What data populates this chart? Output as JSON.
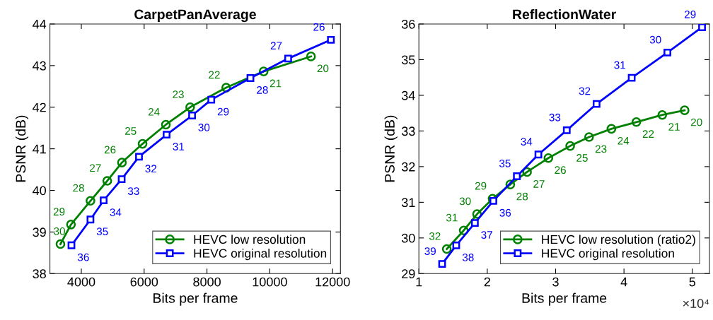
{
  "chart_data": [
    {
      "type": "line",
      "title": "CarpetPanAverage",
      "xlabel": "Bits per frame",
      "ylabel": "PSNR (dB)",
      "xlim": [
        3000,
        12250
      ],
      "xticks": [
        4000,
        6000,
        8000,
        10000,
        12000
      ],
      "ylim": [
        38,
        44
      ],
      "yticks": [
        38,
        39,
        40,
        41,
        42,
        43,
        44
      ],
      "legend": "bottom right",
      "grid": false,
      "line_style": "solid",
      "series": [
        {
          "name": "HEVC low resolution",
          "color": "#008000",
          "marker": "circle",
          "x": [
            3335,
            3671,
            4291,
            4826,
            5293,
            5950,
            6692,
            7465,
            8612,
            9805,
            11312
          ],
          "values": [
            38.71,
            39.18,
            39.75,
            40.23,
            40.67,
            41.12,
            41.58,
            42.0,
            42.47,
            42.86,
            43.22
          ]
        },
        {
          "name": "HEVC original resolution",
          "color": "#0000ff",
          "marker": "square",
          "x": [
            3686,
            4291,
            4711,
            5285,
            5836,
            6715,
            7526,
            8138,
            9384,
            10585,
            11946
          ],
          "values": [
            38.68,
            39.3,
            39.76,
            40.27,
            40.81,
            41.34,
            41.8,
            42.18,
            42.7,
            43.17,
            43.62
          ]
        }
      ],
      "annotations": [
        {
          "text": "30",
          "x": 3335,
          "y": 38.71
        },
        {
          "text": "29",
          "x": 3671,
          "y": 39.18
        },
        {
          "text": "28",
          "x": 4291,
          "y": 39.75
        },
        {
          "text": "27",
          "x": 4826,
          "y": 40.23
        },
        {
          "text": "26",
          "x": 5293,
          "y": 40.67
        },
        {
          "text": "25",
          "x": 5950,
          "y": 41.12
        },
        {
          "text": "24",
          "x": 6692,
          "y": 41.58
        },
        {
          "text": "23",
          "x": 7465,
          "y": 42.0
        },
        {
          "text": "22",
          "x": 8612,
          "y": 42.47
        },
        {
          "text": "21",
          "x": 9805,
          "y": 42.86
        },
        {
          "text": "20",
          "x": 11312,
          "y": 43.22
        },
        {
          "text": "36",
          "x": 3686,
          "y": 38.68
        },
        {
          "text": "35",
          "x": 4291,
          "y": 39.3
        },
        {
          "text": "34",
          "x": 4711,
          "y": 39.76
        },
        {
          "text": "33",
          "x": 5285,
          "y": 40.27
        },
        {
          "text": "32",
          "x": 5836,
          "y": 40.81
        },
        {
          "text": "31",
          "x": 6715,
          "y": 41.34
        },
        {
          "text": "30",
          "x": 7526,
          "y": 41.8
        },
        {
          "text": "29",
          "x": 8138,
          "y": 42.18
        },
        {
          "text": "28",
          "x": 9384,
          "y": 42.7
        },
        {
          "text": "27",
          "x": 10585,
          "y": 43.17
        },
        {
          "text": "26",
          "x": 11946,
          "y": 43.62
        }
      ]
    },
    {
      "type": "line",
      "title": "ReflectionWater",
      "xlabel": "Bits per frame",
      "ylabel": "PSNR (dB)",
      "xlim": [
        1,
        5.25
      ],
      "xticks": [
        1,
        2,
        3,
        4,
        5
      ],
      "ylim": [
        29,
        36
      ],
      "yticks": [
        29,
        30,
        31,
        32,
        33,
        34,
        35,
        36
      ],
      "legend": "bottom right",
      "grid": false,
      "line_style": "solid",
      "series": [
        {
          "name": "HEVC low resolution (ratio2)",
          "color": "#008000",
          "marker": "circle",
          "x": [
            1.408,
            1.656,
            1.851,
            2.078,
            2.337,
            2.582,
            2.894,
            3.213,
            3.489,
            3.816,
            4.181,
            4.56,
            4.887
          ],
          "values": [
            29.69,
            30.21,
            30.67,
            31.1,
            31.5,
            31.85,
            32.24,
            32.58,
            32.83,
            33.06,
            33.25,
            33.45,
            33.58
          ]
        },
        {
          "name": "HEVC original resolution",
          "color": "#0000ff",
          "marker": "square",
          "x": [
            1.34,
            1.546,
            1.819,
            2.089,
            2.433,
            2.748,
            3.163,
            3.599,
            4.113,
            4.635,
            5.142
          ],
          "values": [
            29.27,
            29.79,
            30.42,
            31.04,
            31.73,
            32.34,
            33.02,
            33.76,
            34.49,
            35.2,
            35.91
          ]
        }
      ],
      "annotations": [
        "×10⁴",
        {
          "text": "32",
          "x": 1.408,
          "y": 29.69
        },
        {
          "text": "31",
          "x": 1.656,
          "y": 30.21
        },
        {
          "text": "30",
          "x": 1.851,
          "y": 30.67
        },
        {
          "text": "29",
          "x": 2.078,
          "y": 31.1
        },
        {
          "text": "28",
          "x": 2.337,
          "y": 31.5
        },
        {
          "text": "27",
          "x": 2.582,
          "y": 31.85
        },
        {
          "text": "26",
          "x": 2.894,
          "y": 32.24
        },
        {
          "text": "25",
          "x": 3.213,
          "y": 32.58
        },
        {
          "text": "23",
          "x": 3.489,
          "y": 32.83
        },
        {
          "text": "24",
          "x": 3.816,
          "y": 33.06
        },
        {
          "text": "22",
          "x": 4.181,
          "y": 33.25
        },
        {
          "text": "21",
          "x": 4.56,
          "y": 33.45
        },
        {
          "text": "20",
          "x": 4.887,
          "y": 33.58
        },
        {
          "text": "39",
          "x": 1.34,
          "y": 29.27
        },
        {
          "text": "38",
          "x": 1.546,
          "y": 29.79
        },
        {
          "text": "37",
          "x": 1.819,
          "y": 30.42
        },
        {
          "text": "36",
          "x": 2.089,
          "y": 31.04
        },
        {
          "text": "35",
          "x": 2.433,
          "y": 31.73
        },
        {
          "text": "34",
          "x": 2.748,
          "y": 32.34
        },
        {
          "text": "33",
          "x": 3.163,
          "y": 33.02
        },
        {
          "text": "32",
          "x": 3.599,
          "y": 33.76
        },
        {
          "text": "31",
          "x": 4.113,
          "y": 34.49
        },
        {
          "text": "30",
          "x": 4.635,
          "y": 35.2
        },
        {
          "text": "29",
          "x": 5.142,
          "y": 35.91
        }
      ]
    }
  ]
}
